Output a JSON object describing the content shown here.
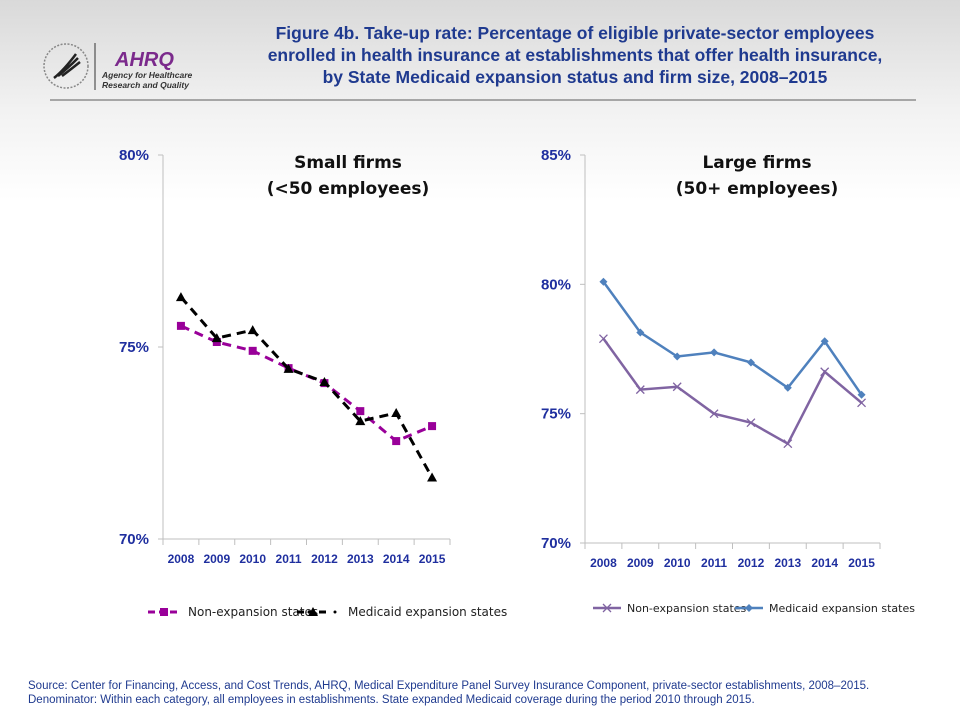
{
  "header": {
    "title_lines": [
      "Figure 4b. Take-up rate: Percentage of eligible private-sector employees",
      "enrolled in health insurance at establishments that offer health insurance,",
      "by State Medicaid expansion status and firm size, 2008–2015"
    ],
    "logo": {
      "brand": "AHRQ",
      "line1": "Agency for Healthcare",
      "line2": "Research and Quality"
    }
  },
  "chart_data": [
    {
      "type": "line",
      "title_lines": [
        "Small firms",
        "(<50 employees)"
      ],
      "categories": [
        "2008",
        "2009",
        "2010",
        "2011",
        "2012",
        "2013",
        "2014",
        "2015"
      ],
      "ylim": [
        70,
        80
      ],
      "yticks": [
        "70%",
        "75%",
        "80%"
      ],
      "legend": "bottom",
      "series": [
        {
          "name": "Non-expansion states",
          "color": "#990099",
          "style": "dashed-square",
          "values": [
            75.55,
            75.13,
            74.9,
            74.45,
            74.06,
            73.33,
            72.55,
            72.94
          ]
        },
        {
          "name": "Medicaid expansion states",
          "color": "#000000",
          "style": "dashed-triangle",
          "values": [
            76.3,
            75.23,
            75.44,
            74.43,
            74.09,
            73.07,
            73.28,
            71.6
          ]
        }
      ]
    },
    {
      "type": "line",
      "title_lines": [
        "Large firms",
        "(50+ employees)"
      ],
      "categories": [
        "2008",
        "2009",
        "2010",
        "2011",
        "2012",
        "2013",
        "2014",
        "2015"
      ],
      "ylim": [
        70,
        85
      ],
      "yticks": [
        "70%",
        "75%",
        "80%",
        "85%"
      ],
      "legend": "bottom",
      "series": [
        {
          "name": "Non-expansion states",
          "color": "#8064a2",
          "style": "solid-x",
          "values": [
            77.9,
            75.93,
            76.04,
            75.0,
            74.65,
            73.84,
            76.62,
            75.42
          ]
        },
        {
          "name": "Medicaid expansion states",
          "color": "#4f81bd",
          "style": "solid-diamond",
          "values": [
            80.1,
            78.14,
            77.21,
            77.37,
            76.98,
            76.0,
            77.8,
            75.73
          ]
        }
      ]
    }
  ],
  "footer": {
    "source": "Source: Center for Financing, Access, and Cost Trends, AHRQ, Medical Expenditure Panel Survey Insurance Component, private-sector establishments, 2008–2015.",
    "denominator": "Denominator: Within each category, all employees in establishments. State expanded Medicaid coverage during the period 2010 through 2015."
  }
}
